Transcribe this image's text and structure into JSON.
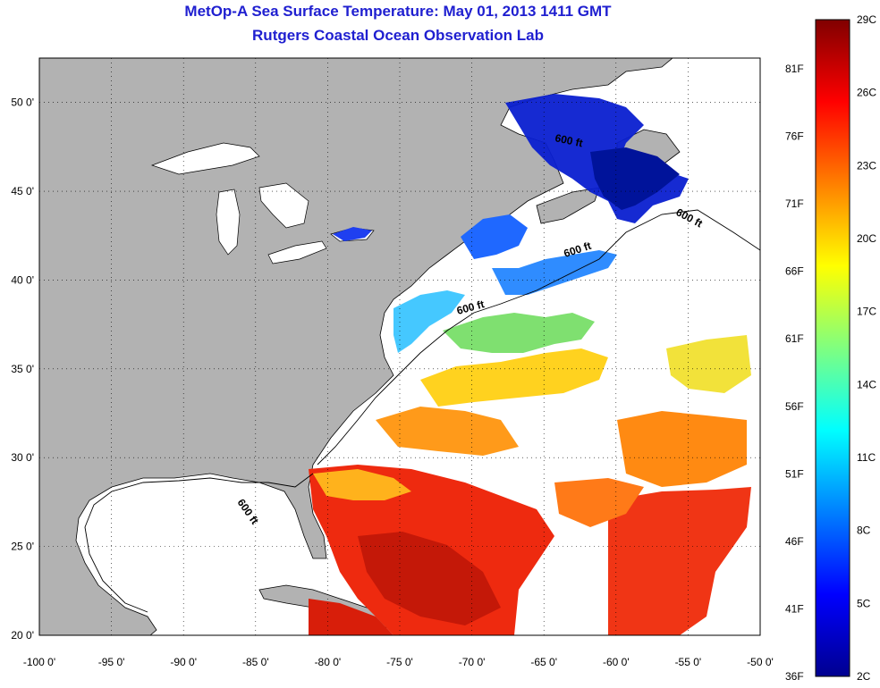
{
  "title": {
    "line1": "MetOp-A Sea Surface Temperature:  May 01, 2013 1411 GMT",
    "line2": "Rutgers Coastal Ocean Observation Lab"
  },
  "map": {
    "lat_ticks": [
      {
        "lat": 50,
        "label": "50 0'"
      },
      {
        "lat": 45,
        "label": "45 0'"
      },
      {
        "lat": 40,
        "label": "40 0'"
      },
      {
        "lat": 35,
        "label": "35 0'"
      },
      {
        "lat": 30,
        "label": "30 0'"
      },
      {
        "lat": 25,
        "label": "25 0'"
      },
      {
        "lat": 20,
        "label": "20 0'"
      }
    ],
    "lon_ticks": [
      {
        "lon": -100,
        "label": "-100 0'"
      },
      {
        "lon": -95,
        "label": "-95 0'"
      },
      {
        "lon": -90,
        "label": "-90 0'"
      },
      {
        "lon": -85,
        "label": "-85 0'"
      },
      {
        "lon": -80,
        "label": "-80 0'"
      },
      {
        "lon": -75,
        "label": "-75 0'"
      },
      {
        "lon": -70,
        "label": "-70 0'"
      },
      {
        "lon": -65,
        "label": "-65 0'"
      },
      {
        "lon": -60,
        "label": "-60 0'"
      },
      {
        "lon": -55,
        "label": "-55 0'"
      },
      {
        "lon": -50,
        "label": "-50 0'"
      }
    ],
    "lon_range": [
      -100,
      -50
    ],
    "lat_range": [
      20,
      52.5
    ],
    "contour_label": "600 ft",
    "colors": {
      "land": "#b2b2b2",
      "ocean": "#ffffff"
    }
  },
  "colorbar": {
    "celsius": [
      "29C",
      "26C",
      "23C",
      "20C",
      "17C",
      "14C",
      "11C",
      "8C",
      "5C",
      "2C"
    ],
    "fahrenheit": [
      "81F",
      "76F",
      "71F",
      "66F",
      "61F",
      "56F",
      "51F",
      "46F",
      "41F",
      "36F"
    ],
    "range_c": [
      2,
      29
    ],
    "colormap": "jet"
  }
}
